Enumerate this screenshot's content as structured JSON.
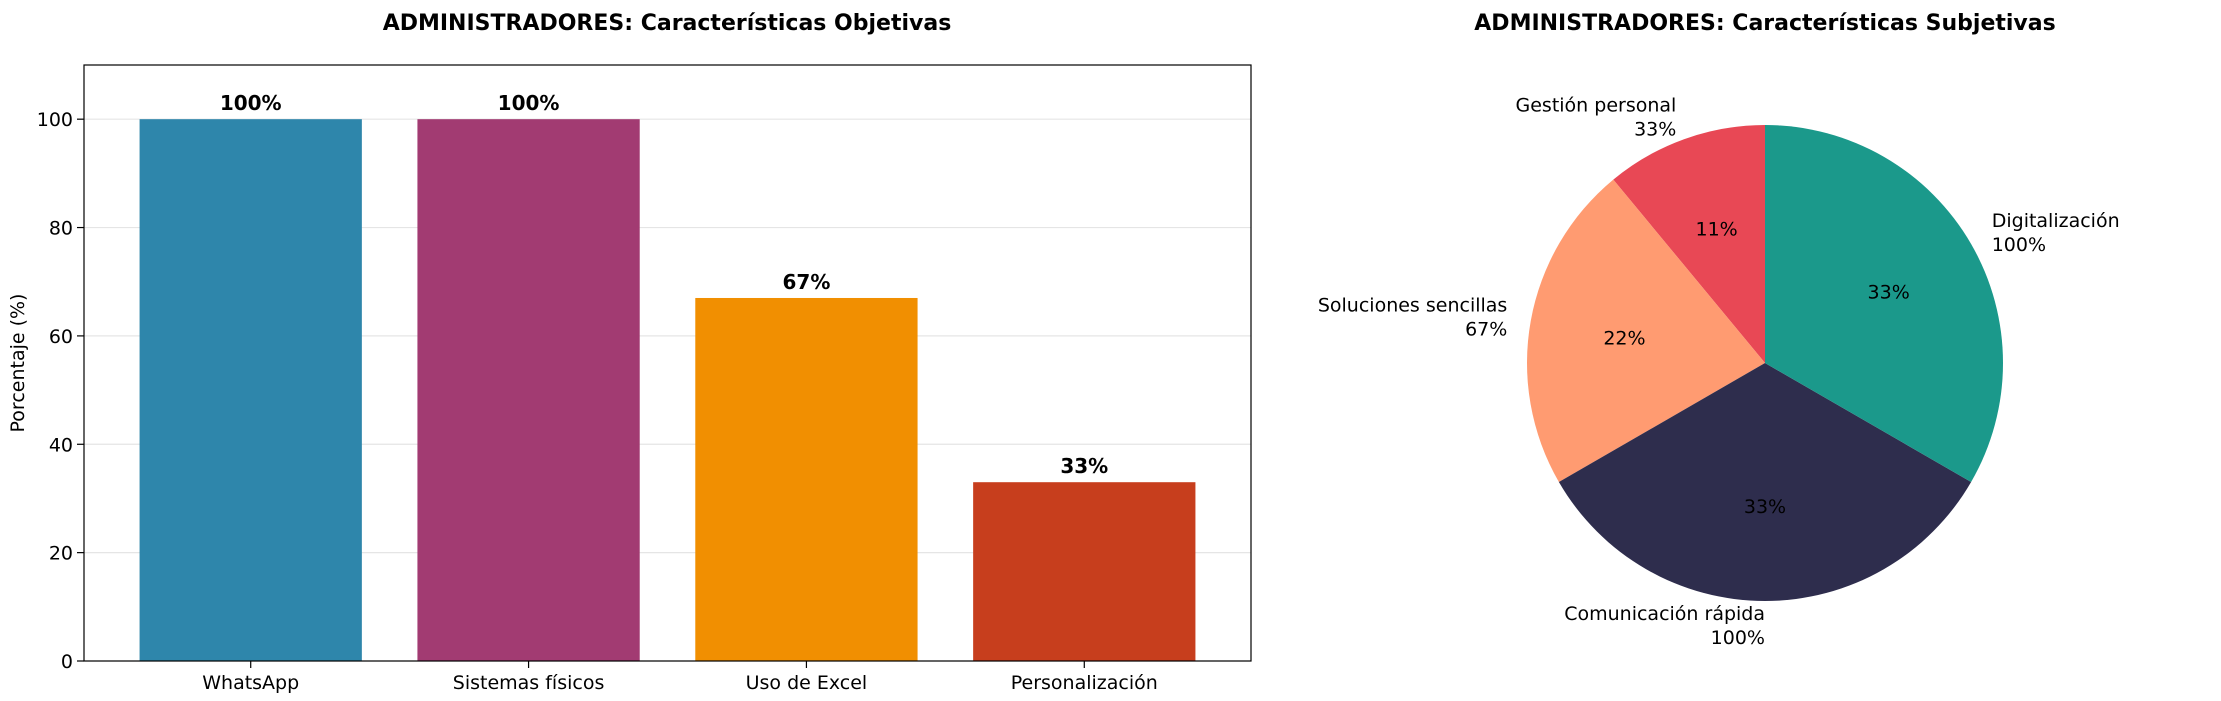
{
  "chart_data": [
    {
      "type": "bar",
      "title": "ADMINISTRADORES: Características Objetivas",
      "xlabel": "",
      "ylabel": "Porcentaje (%)",
      "categories": [
        "WhatsApp",
        "Sistemas físicos",
        "Uso de Excel",
        "Personalización"
      ],
      "values": [
        100,
        100,
        67,
        33
      ],
      "value_labels": [
        "100%",
        "100%",
        "67%",
        "33%"
      ],
      "colors": [
        "#2e86ab",
        "#a23b72",
        "#f18f01",
        "#c73e1d"
      ],
      "ylim": [
        0,
        110
      ],
      "yticks": [
        0,
        20,
        40,
        60,
        80,
        100
      ],
      "ytick_labels": [
        "0",
        "20",
        "40",
        "60",
        "80",
        "100"
      ],
      "grid": "horizontal"
    },
    {
      "type": "pie",
      "title": "ADMINISTRADORES: Características Subjetivas",
      "labels": [
        "Gestión personal\n33%",
        "Soluciones sencillas\n67%",
        "Comunicación rápida\n100%",
        "Digitalización\n100%"
      ],
      "values": [
        33,
        67,
        100,
        100
      ],
      "pct_labels": [
        "11%",
        "22%",
        "33%",
        "33%"
      ],
      "colors": [
        "#e84855",
        "#ff9b71",
        "#2e2d4d",
        "#1b998b"
      ]
    }
  ]
}
